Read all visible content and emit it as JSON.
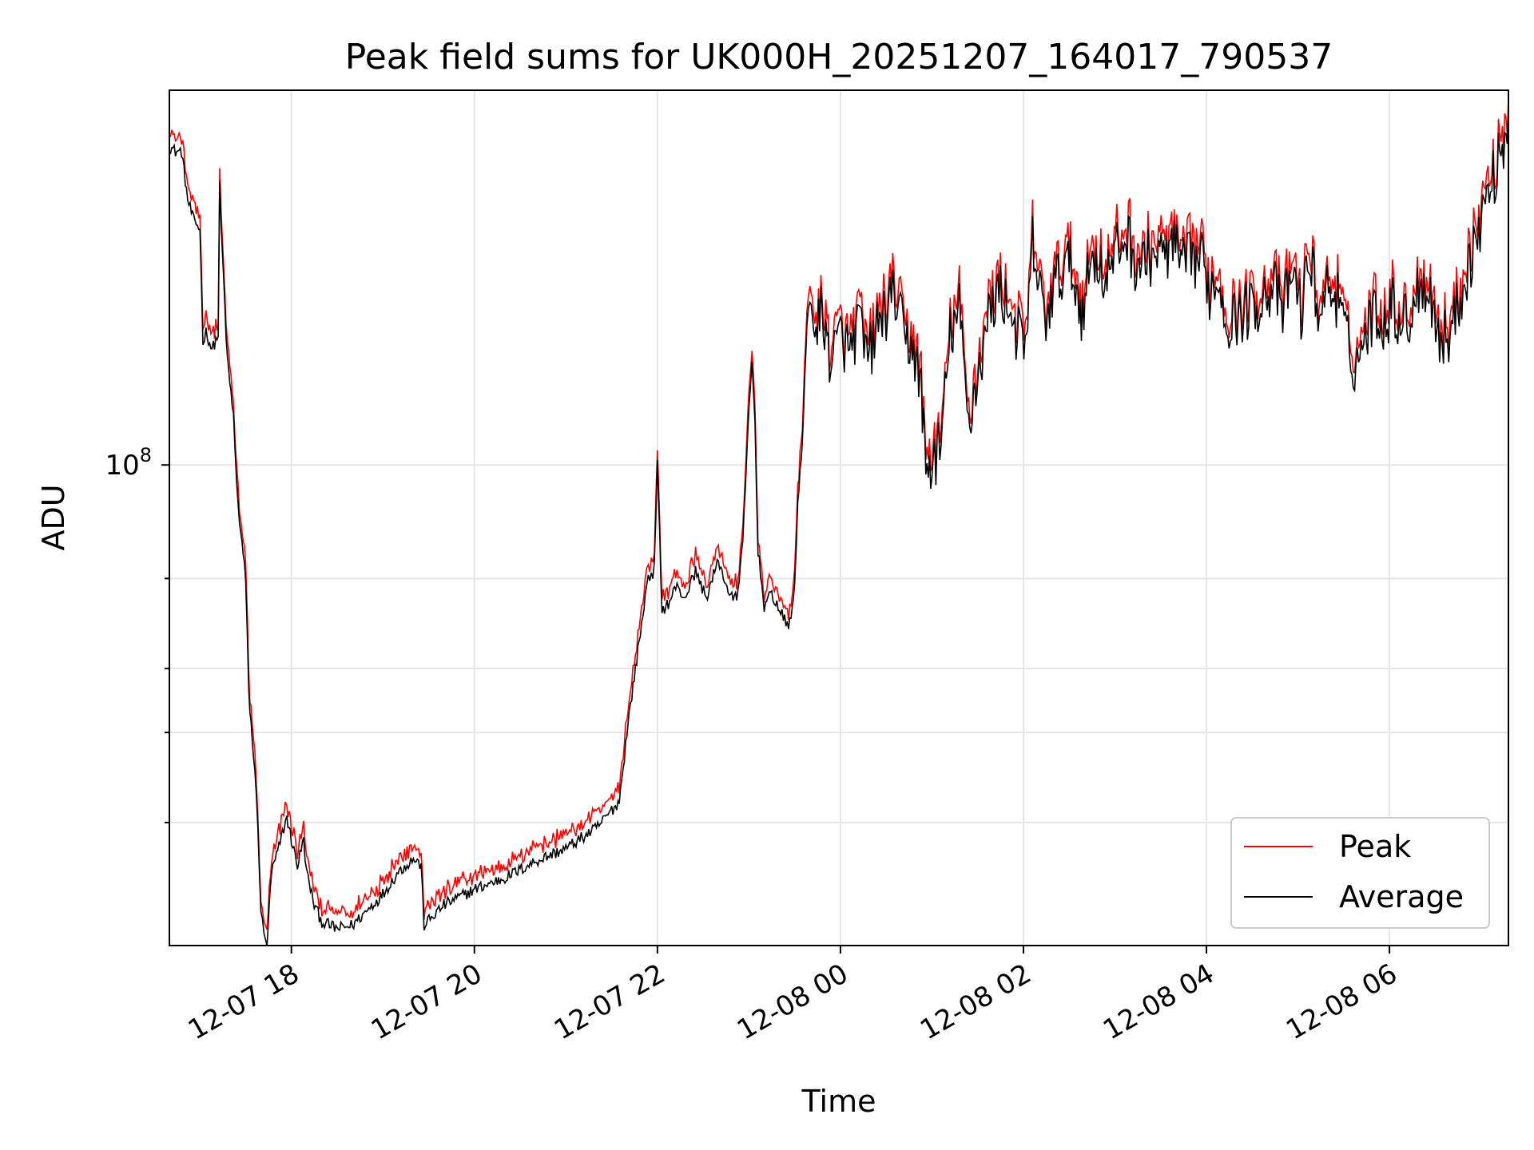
{
  "chart_data": {
    "type": "line",
    "title": "Peak field sums for UK000H_20251207_164017_790537",
    "xlabel": "Time",
    "ylabel": "ADU",
    "y_scale": "log",
    "ylim": [
      11500000,
      540000000
    ],
    "y_major_tick": {
      "value": 100000000,
      "label_base": "10",
      "label_exp": "8"
    },
    "y_minor_ticks": [
      20000000,
      30000000,
      40000000,
      60000000
    ],
    "xlim": [
      "2025-12-07T16:40",
      "2025-12-08T07:18"
    ],
    "x_ticks": [
      {
        "t": "2025-12-07T18:00",
        "label": "12-07 18"
      },
      {
        "t": "2025-12-07T20:00",
        "label": "12-07 20"
      },
      {
        "t": "2025-12-07T22:00",
        "label": "12-07 22"
      },
      {
        "t": "2025-12-08T00:00",
        "label": "12-08 00"
      },
      {
        "t": "2025-12-08T02:00",
        "label": "12-08 02"
      },
      {
        "t": "2025-12-08T04:00",
        "label": "12-08 04"
      },
      {
        "t": "2025-12-08T06:00",
        "label": "12-08 06"
      }
    ],
    "grid": true,
    "legend_position": "lower-right",
    "series": [
      {
        "name": "Peak",
        "color": "#ff0000",
        "offset_factor": 1.04
      },
      {
        "name": "Average",
        "color": "#000000"
      }
    ],
    "x": [
      "2025-12-07T16:40",
      "2025-12-07T16:44",
      "2025-12-07T16:48",
      "2025-12-07T16:52",
      "2025-12-07T16:56",
      "2025-12-07T17:00",
      "2025-12-07T17:02",
      "2025-12-07T17:04",
      "2025-12-07T17:08",
      "2025-12-07T17:12",
      "2025-12-07T17:13",
      "2025-12-07T17:14",
      "2025-12-07T17:18",
      "2025-12-07T17:22",
      "2025-12-07T17:24",
      "2025-12-07T17:26",
      "2025-12-07T17:30",
      "2025-12-07T17:32",
      "2025-12-07T17:36",
      "2025-12-07T17:38",
      "2025-12-07T17:40",
      "2025-12-07T17:42",
      "2025-12-07T17:44",
      "2025-12-07T17:47",
      "2025-12-07T17:51",
      "2025-12-07T17:55",
      "2025-12-07T17:57",
      "2025-12-07T18:00",
      "2025-12-07T18:04",
      "2025-12-07T18:08",
      "2025-12-07T18:10",
      "2025-12-07T18:15",
      "2025-12-07T18:20",
      "2025-12-07T18:30",
      "2025-12-07T18:40",
      "2025-12-07T18:50",
      "2025-12-07T19:00",
      "2025-12-07T19:10",
      "2025-12-07T19:20",
      "2025-12-07T19:25",
      "2025-12-07T19:27",
      "2025-12-07T19:40",
      "2025-12-07T20:00",
      "2025-12-07T20:20",
      "2025-12-07T20:40",
      "2025-12-07T21:00",
      "2025-12-07T21:20",
      "2025-12-07T21:35",
      "2025-12-07T21:40",
      "2025-12-07T21:44",
      "2025-12-07T21:48",
      "2025-12-07T21:52",
      "2025-12-07T21:54",
      "2025-12-07T21:56",
      "2025-12-07T21:58",
      "2025-12-07T22:00",
      "2025-12-07T22:03",
      "2025-12-07T22:08",
      "2025-12-07T22:12",
      "2025-12-07T22:18",
      "2025-12-07T22:25",
      "2025-12-07T22:32",
      "2025-12-07T22:40",
      "2025-12-07T22:48",
      "2025-12-07T22:52",
      "2025-12-07T22:56",
      "2025-12-07T23:00",
      "2025-12-07T23:02",
      "2025-12-07T23:04",
      "2025-12-07T23:06",
      "2025-12-07T23:10",
      "2025-12-07T23:15",
      "2025-12-07T23:20",
      "2025-12-07T23:26",
      "2025-12-07T23:30",
      "2025-12-07T23:32",
      "2025-12-07T23:35",
      "2025-12-07T23:38",
      "2025-12-07T23:40",
      "2025-12-07T23:44",
      "2025-12-07T23:48",
      "2025-12-07T23:52",
      "2025-12-07T23:56",
      "2025-12-08T00:00",
      "2025-12-08T00:06",
      "2025-12-08T00:12",
      "2025-12-08T00:18",
      "2025-12-08T00:24",
      "2025-12-08T00:30",
      "2025-12-08T00:36",
      "2025-12-08T00:42",
      "2025-12-08T00:48",
      "2025-12-08T00:53",
      "2025-12-08T00:56",
      "2025-12-08T01:00",
      "2025-12-08T01:06",
      "2025-12-08T01:12",
      "2025-12-08T01:18",
      "2025-12-08T01:24",
      "2025-12-08T01:28",
      "2025-12-08T01:32",
      "2025-12-08T01:38",
      "2025-12-08T01:44",
      "2025-12-08T01:50",
      "2025-12-08T01:56",
      "2025-12-08T02:02",
      "2025-12-08T02:06",
      "2025-12-08T02:14",
      "2025-12-08T02:22",
      "2025-12-08T02:30",
      "2025-12-08T02:38",
      "2025-12-08T02:46",
      "2025-12-08T02:54",
      "2025-12-08T03:02",
      "2025-12-08T03:08",
      "2025-12-08T03:14",
      "2025-12-08T03:20",
      "2025-12-08T03:26",
      "2025-12-08T03:32",
      "2025-12-08T03:38",
      "2025-12-08T03:44",
      "2025-12-08T03:50",
      "2025-12-08T03:56",
      "2025-12-08T04:02",
      "2025-12-08T04:08",
      "2025-12-08T04:14",
      "2025-12-08T04:20",
      "2025-12-08T04:26",
      "2025-12-08T04:32",
      "2025-12-08T04:38",
      "2025-12-08T04:44",
      "2025-12-08T04:50",
      "2025-12-08T04:56",
      "2025-12-08T05:02",
      "2025-12-08T05:08",
      "2025-12-08T05:14",
      "2025-12-08T05:20",
      "2025-12-08T05:26",
      "2025-12-08T05:32",
      "2025-12-08T05:38",
      "2025-12-08T05:44",
      "2025-12-08T05:50",
      "2025-12-08T05:56",
      "2025-12-08T06:02",
      "2025-12-08T06:08",
      "2025-12-08T06:14",
      "2025-12-08T06:20",
      "2025-12-08T06:26",
      "2025-12-08T06:32",
      "2025-12-08T06:38",
      "2025-12-08T06:44",
      "2025-12-08T06:50",
      "2025-12-08T06:56",
      "2025-12-08T07:02",
      "2025-12-08T07:08",
      "2025-12-08T07:14",
      "2025-12-08T07:18"
    ],
    "average": [
      420000000,
      410000000,
      410000000,
      330000000,
      300000000,
      290000000,
      175000000,
      182000000,
      168000000,
      180000000,
      350000000,
      290000000,
      160000000,
      125000000,
      92000000,
      78000000,
      60000000,
      36000000,
      25000000,
      20000000,
      13500000,
      12000000,
      11600000,
      16000000,
      17500000,
      19500000,
      20500000,
      18500000,
      16500000,
      18500000,
      16000000,
      13800000,
      12800000,
      12400000,
      12600000,
      13500000,
      14500000,
      16000000,
      17000000,
      16500000,
      12600000,
      13800000,
      14800000,
      15600000,
      16800000,
      17800000,
      19500000,
      22000000,
      30000000,
      37000000,
      45000000,
      55000000,
      62000000,
      60000000,
      63000000,
      100000000,
      52000000,
      54000000,
      58000000,
      55000000,
      62000000,
      55000000,
      65000000,
      55000000,
      55000000,
      70000000,
      128000000,
      160000000,
      120000000,
      68000000,
      53000000,
      56000000,
      52000000,
      48000000,
      57000000,
      84000000,
      112000000,
      185000000,
      210000000,
      175000000,
      205000000,
      165000000,
      165000000,
      180000000,
      165000000,
      190000000,
      160000000,
      185000000,
      200000000,
      215000000,
      175000000,
      170000000,
      140000000,
      98000000,
      100000000,
      110000000,
      180000000,
      200000000,
      120000000,
      140000000,
      160000000,
      200000000,
      220000000,
      205000000,
      180000000,
      170000000,
      270000000,
      190000000,
      230000000,
      250000000,
      200000000,
      260000000,
      230000000,
      265000000,
      280000000,
      245000000,
      250000000,
      260000000,
      255000000,
      270000000,
      245000000,
      250000000,
      255000000,
      220000000,
      230000000,
      190000000,
      195000000,
      200000000,
      205000000,
      215000000,
      225000000,
      195000000,
      240000000,
      200000000,
      255000000,
      195000000,
      225000000,
      210000000,
      175000000,
      155000000,
      180000000,
      200000000,
      190000000,
      205000000,
      190000000,
      195000000,
      230000000,
      220000000,
      180000000,
      175000000,
      200000000,
      235000000,
      270000000,
      320000000,
      360000000,
      420000000,
      470000000,
      500000000
    ]
  }
}
